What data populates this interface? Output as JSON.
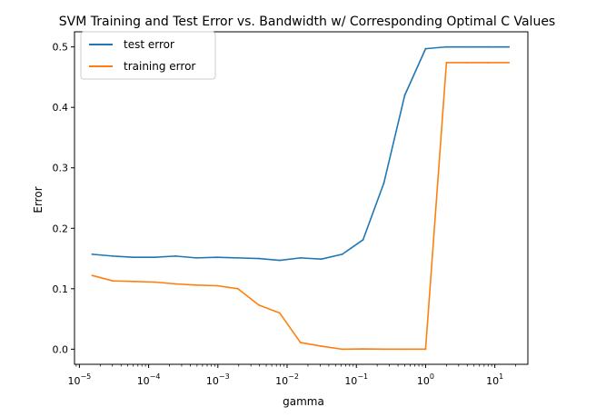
{
  "chart_data": {
    "type": "line",
    "title": "SVM Training and Test Error vs. Bandwidth w/ Corresponding Optimal C Values",
    "xlabel": "gamma",
    "ylabel": "Error",
    "xscale": "log",
    "xlim": [
      8.5e-06,
      30
    ],
    "ylim": [
      -0.025,
      0.525
    ],
    "grid": false,
    "legend_position": "upper-left",
    "x": [
      1.53e-05,
      3.05e-05,
      6.1e-05,
      0.000122,
      0.000244,
      0.000488,
      0.000977,
      0.00195,
      0.0039,
      0.0078,
      0.0156,
      0.03125,
      0.0625,
      0.125,
      0.25,
      0.5,
      1,
      2,
      4,
      8,
      16
    ],
    "series": [
      {
        "name": "test error",
        "color": "#1f77b4",
        "values": [
          0.157,
          0.154,
          0.152,
          0.152,
          0.154,
          0.151,
          0.152,
          0.151,
          0.15,
          0.147,
          0.151,
          0.149,
          0.157,
          0.181,
          0.275,
          0.42,
          0.497,
          0.5,
          0.5,
          0.5,
          0.5
        ]
      },
      {
        "name": "training error",
        "color": "#ff7f0e",
        "values": [
          0.122,
          0.113,
          0.112,
          0.111,
          0.108,
          0.106,
          0.105,
          0.1,
          0.073,
          0.06,
          0.011,
          0.005,
          0.0,
          0.0005,
          0.0,
          0.0,
          0.0,
          0.474,
          0.474,
          0.474,
          0.474
        ]
      }
    ],
    "yticks": [
      "0.0",
      "0.1",
      "0.2",
      "0.3",
      "0.4",
      "0.5"
    ],
    "yticks_values": [
      0.0,
      0.1,
      0.2,
      0.3,
      0.4,
      0.5
    ],
    "xticks_exponents": [
      "-5",
      "-4",
      "-3",
      "-2",
      "-1",
      "0",
      "1"
    ],
    "xticks_base": "10"
  }
}
